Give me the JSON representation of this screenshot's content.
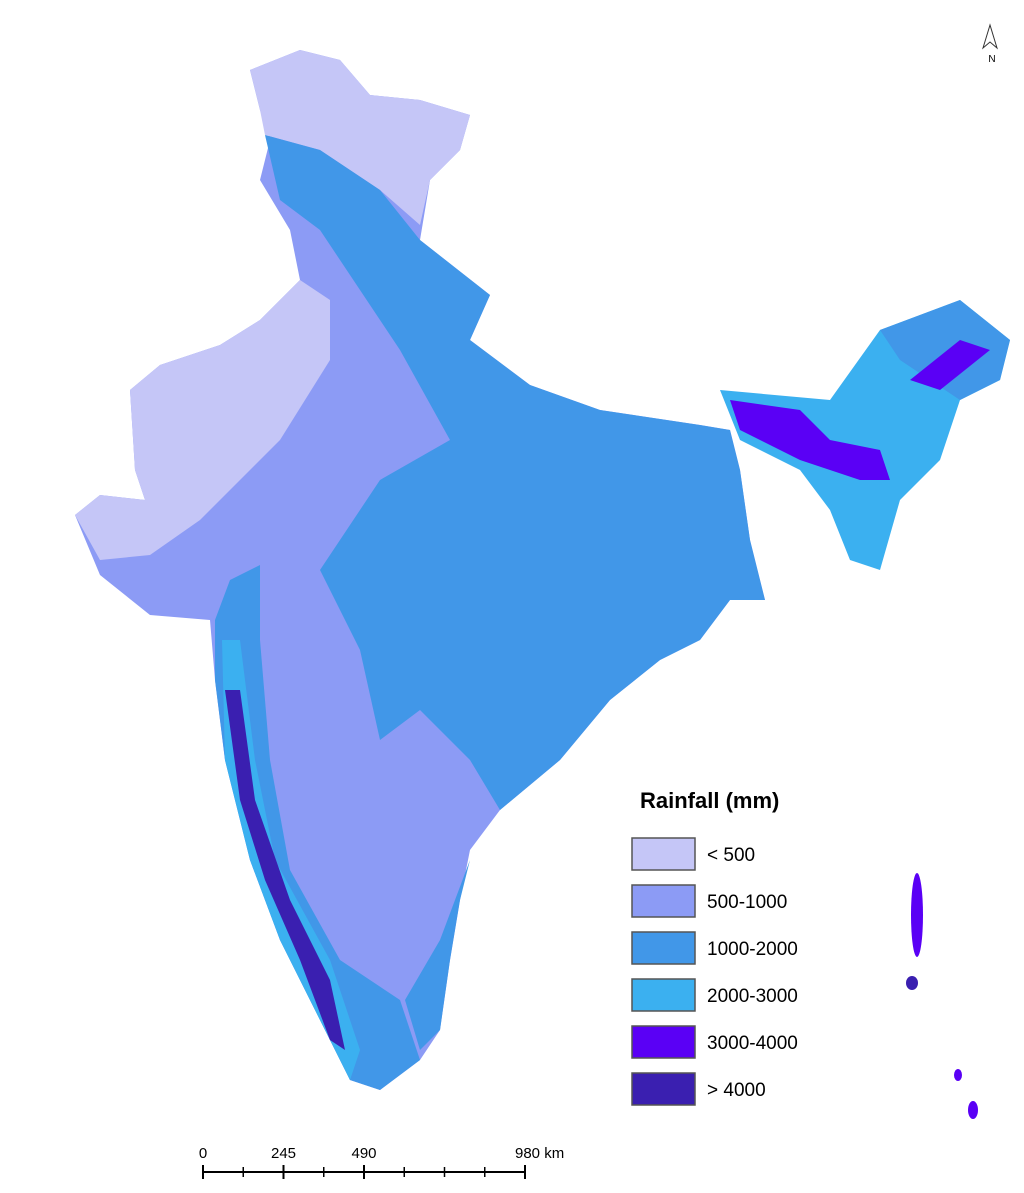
{
  "legend": {
    "title": "Rainfall (mm)",
    "items": [
      {
        "label": "< 500",
        "color": "#c5c6f7"
      },
      {
        "label": "500-1000",
        "color": "#8c9bf5"
      },
      {
        "label": "1000-2000",
        "color": "#4197e8"
      },
      {
        "label": "2000-3000",
        "color": "#3bb0f0"
      },
      {
        "label": "3000-4000",
        "color": "#5a00f5"
      },
      {
        "label": "> 4000",
        "color": "#3a1fb0"
      }
    ]
  },
  "north_arrow": "N",
  "scale_bar": {
    "ticks": [
      0,
      245,
      490,
      {
        "value": 980,
        "label": "980 km"
      }
    ]
  }
}
